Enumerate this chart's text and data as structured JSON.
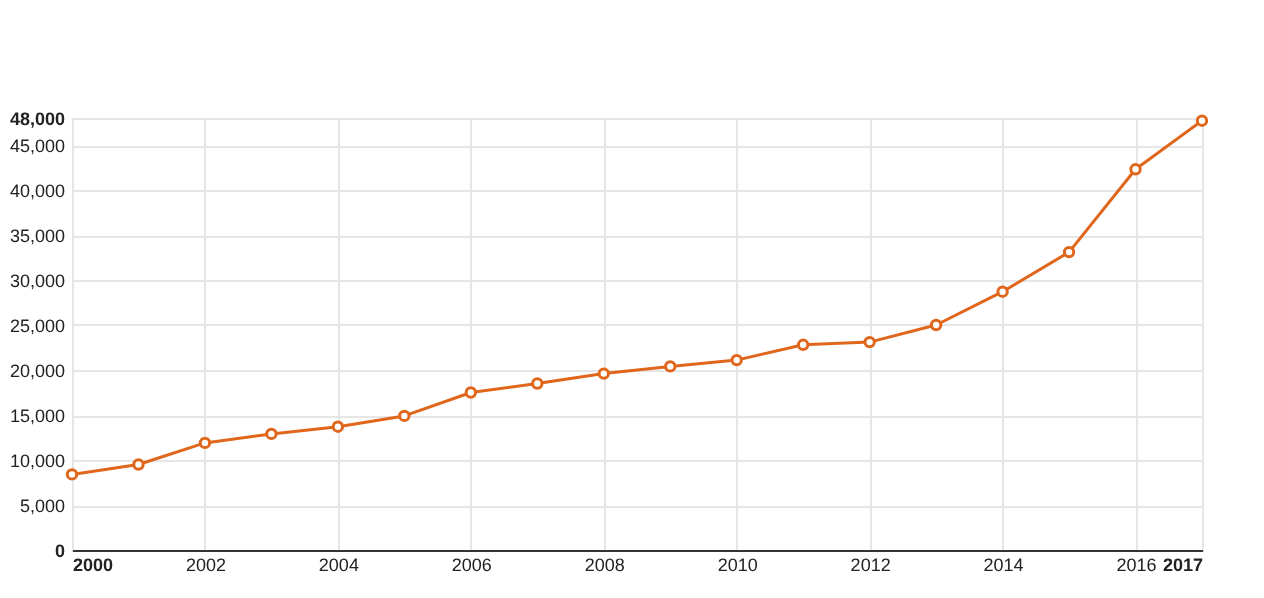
{
  "chart_data": {
    "type": "line",
    "x": [
      2000,
      2001,
      2002,
      2003,
      2004,
      2005,
      2006,
      2007,
      2008,
      2009,
      2010,
      2011,
      2012,
      2013,
      2014,
      2015,
      2016,
      2017
    ],
    "series": [
      {
        "color": "#e0661c",
        "values": [
          8400,
          9500,
          11900,
          12900,
          13700,
          14900,
          17500,
          18500,
          19600,
          20400,
          21100,
          22800,
          23100,
          25000,
          28700,
          33100,
          42300,
          47700
        ]
      }
    ],
    "xlim": [
      2000,
      2017
    ],
    "xticks": [
      2000,
      2002,
      2004,
      2006,
      2008,
      2010,
      2012,
      2014,
      2016,
      2017
    ],
    "ylim": [
      0,
      48000
    ],
    "yticks": [
      0,
      {
        "value": 5000,
        "label": "5,000"
      },
      {
        "value": 10000,
        "label": "10,000"
      },
      {
        "value": 15000,
        "label": "15,000"
      },
      {
        "value": 20000,
        "label": "20,000"
      },
      {
        "value": 25000,
        "label": "25,000"
      },
      {
        "value": 30000,
        "label": "30,000"
      },
      {
        "value": 35000,
        "label": "35,000"
      },
      {
        "value": 40000,
        "label": "40,000"
      },
      {
        "value": 45000,
        "label": "45,000"
      },
      {
        "value": 48000,
        "label": "48,000"
      }
    ],
    "grid": true,
    "marker": "circle",
    "line_style": "solid"
  }
}
